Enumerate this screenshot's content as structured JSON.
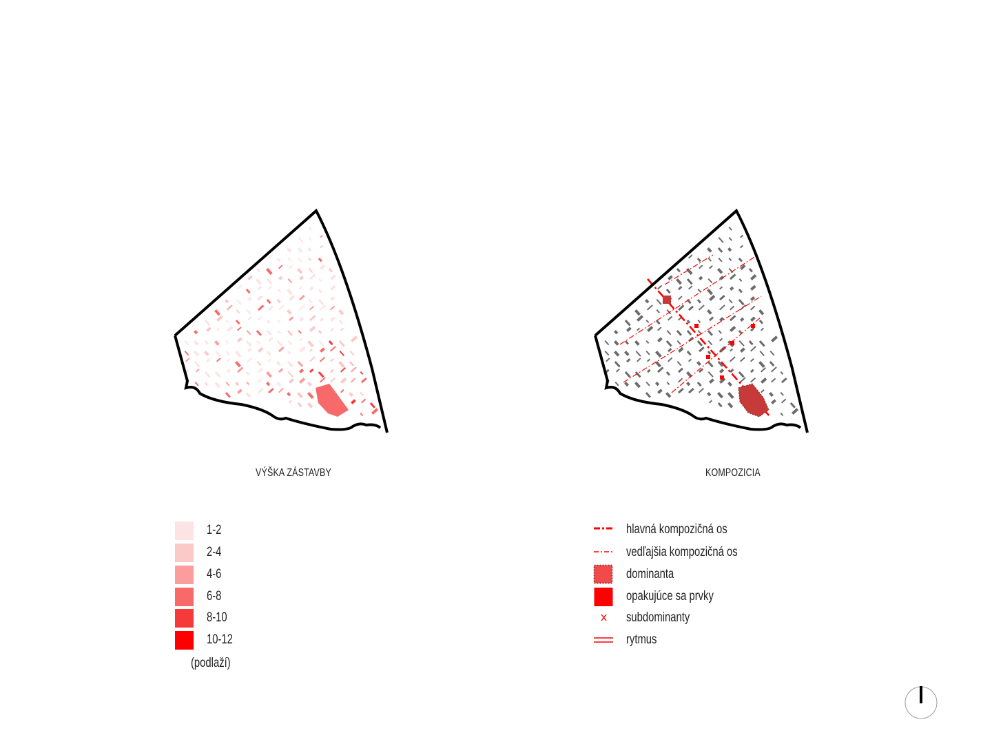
{
  "maps": {
    "height": {
      "title": "VÝŠKA ZÁSTAVBY"
    },
    "composition": {
      "title": "KOMPOZICIA"
    }
  },
  "legend_height": {
    "items": [
      {
        "label": "1-2",
        "color": "#fde4e4"
      },
      {
        "label": "2-4",
        "color": "#fcc9c9"
      },
      {
        "label": "4-6",
        "color": "#fb9d9d"
      },
      {
        "label": "6-8",
        "color": "#f86a6a"
      },
      {
        "label": "8-10",
        "color": "#f63a3a"
      },
      {
        "label": "10-12",
        "color": "#ff0000"
      }
    ],
    "unit_note": "(podlaží)"
  },
  "legend_composition": {
    "items": [
      {
        "label": "hlavná kompozičná os",
        "icon": "main-axis-icon"
      },
      {
        "label": "vedľajšia kompozičná os",
        "icon": "secondary-axis-icon"
      },
      {
        "label": "dominanta",
        "icon": "dominant-icon"
      },
      {
        "label": "opakujúce sa prvky",
        "icon": "repeating-elements-icon"
      },
      {
        "label": "subdominanty",
        "icon": "subdominant-icon"
      },
      {
        "label": "rytmus",
        "icon": "rhythm-icon"
      }
    ]
  },
  "colors": {
    "accent": "#ff0000",
    "outline": "#000000",
    "building_gray": "#6b6b6b",
    "dominant": "#c63a3a"
  },
  "north_arrow": {
    "icon": "north-arrow-icon"
  }
}
